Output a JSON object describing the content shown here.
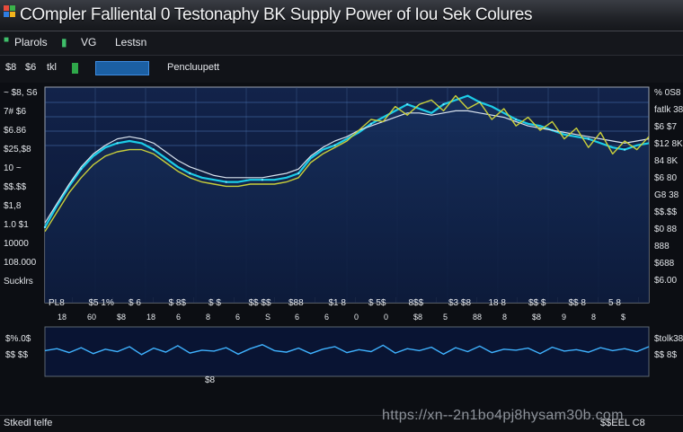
{
  "window": {
    "title": "COmpler Falliental 0 Testonaphy BK Supply Power of Iou Sek Colures"
  },
  "menu": {
    "items": [
      "Plarols",
      "VG",
      "Lestsn"
    ]
  },
  "toolbar": {
    "items": [
      "$8",
      "$6",
      "tkl"
    ],
    "active_label": "",
    "right_label": "Pencluupett"
  },
  "left_axis_labels": [
    "~ $8, S6",
    "7# $6",
    "$6.86",
    "$25,$8",
    "10 ~",
    "$$.$$",
    "$1,8",
    "1.0 $1",
    "10000",
    "108.000",
    "Sucklrs"
  ],
  "right_axis_labels": [
    "% 0S8",
    "fatlk 38",
    "$6 $7",
    "$12 8K",
    "84 8K",
    "$6 80",
    "G8 38",
    "$$.$$",
    "$0 88",
    "888",
    "$688",
    "$6.00"
  ],
  "bottom_axis_labels": [
    "PL8",
    "$5 1%",
    "$ 6",
    "$ 8$",
    "$ $",
    "$$ $$",
    "$88",
    "$1 8",
    "$ 5$",
    "8$$",
    "$3 $8",
    "18 8",
    "$$ $",
    "$$ 8",
    "5 8"
  ],
  "bottom_tick_numbers": [
    "18",
    "60",
    "$8",
    "18",
    "6",
    "8",
    "6",
    "S",
    "6",
    "6",
    "0",
    "0",
    "$8",
    "5",
    "88",
    "8",
    "$8",
    "9",
    "8",
    "$"
  ],
  "lower_panel": {
    "left_labels": [
      "$%.0$",
      "$$ $$"
    ],
    "right_labels": [
      "$tolk38",
      "$$ 8$"
    ],
    "bottom_label": "$8"
  },
  "status": {
    "left": "Stkedl telfe",
    "right": "$$EEL C8"
  },
  "watermark": "https://xn--2n1bo4pj8hysam30b.com",
  "colors": {
    "plot_bg": "#0f1d3d",
    "accent": "#19c6e6",
    "series_secondary": "#c9cf3a",
    "title_bar": "#2a2d33"
  },
  "chart_data": {
    "type": "line",
    "title": "COmpler Falliental 0 Testonaphy BK Supply Power of Iou Sek Colures",
    "x": [
      0,
      2,
      4,
      6,
      8,
      10,
      12,
      14,
      16,
      18,
      20,
      22,
      24,
      26,
      28,
      30,
      32,
      34,
      36,
      38,
      40,
      42,
      44,
      46,
      48,
      50,
      52,
      54,
      56,
      58,
      60,
      62,
      64,
      66,
      68,
      70,
      72,
      74,
      76,
      78,
      80,
      82,
      84,
      86,
      88,
      90,
      92,
      94,
      96,
      98,
      100
    ],
    "ylim": [
      0,
      100
    ],
    "series": [
      {
        "values": [
          35,
          45,
          54,
          62,
          68,
          72,
          74,
          75,
          74,
          71,
          67,
          63,
          60,
          58,
          57,
          56,
          56,
          57,
          57,
          57,
          58,
          60,
          67,
          71,
          73,
          76,
          79,
          83,
          86,
          89,
          92,
          90,
          88,
          92,
          94,
          96,
          93,
          91,
          88,
          85,
          83,
          82,
          80,
          78,
          77,
          76,
          74,
          72,
          71,
          73,
          74
        ]
      },
      {
        "values": [
          37,
          46,
          55,
          63,
          69,
          73,
          76,
          77,
          76,
          74,
          70,
          66,
          63,
          61,
          59,
          58,
          58,
          58,
          58,
          59,
          60,
          62,
          68,
          72,
          75,
          77,
          80,
          82,
          84,
          86,
          88,
          88,
          87,
          88,
          89,
          89,
          88,
          87,
          86,
          84,
          82,
          81,
          80,
          79,
          78,
          77,
          76,
          75,
          74,
          75,
          76
        ]
      },
      {
        "values": [
          33,
          42,
          51,
          58,
          64,
          68,
          70,
          71,
          71,
          69,
          65,
          61,
          58,
          56,
          55,
          54,
          54,
          55,
          55,
          55,
          56,
          58,
          65,
          69,
          72,
          75,
          80,
          85,
          84,
          91,
          87,
          92,
          94,
          89,
          96,
          90,
          93,
          85,
          90,
          82,
          86,
          80,
          84,
          76,
          81,
          72,
          79,
          69,
          75,
          71,
          77
        ]
      }
    ],
    "lower_series": {
      "ylim": [
        0,
        100
      ],
      "values": [
        52,
        56,
        48,
        58,
        46,
        55,
        50,
        60,
        44,
        57,
        49,
        62,
        47,
        53,
        51,
        58,
        45,
        56,
        64,
        52,
        49,
        57,
        46,
        55,
        60,
        48,
        54,
        50,
        63,
        47,
        56,
        52,
        59,
        45,
        58,
        50,
        61,
        48,
        55,
        53,
        57,
        46,
        59,
        51,
        54,
        49,
        58,
        52,
        56,
        50,
        60
      ]
    }
  }
}
